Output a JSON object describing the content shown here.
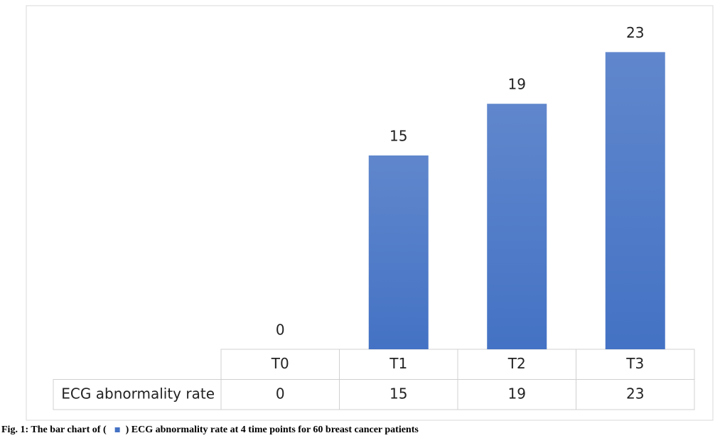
{
  "chart_data": {
    "type": "bar",
    "categories": [
      "T0",
      "T1",
      "T2",
      "T3"
    ],
    "series": [
      {
        "name": "ECG abnormality rate",
        "color": "#4472c4",
        "values": [
          0,
          15,
          19,
          23
        ]
      }
    ],
    "caption": {
      "prefix": "Fig. 1: The bar chart of (",
      "suffix": ") ECG abnormality rate at 4 time points for 60 breast cancer patients"
    }
  }
}
